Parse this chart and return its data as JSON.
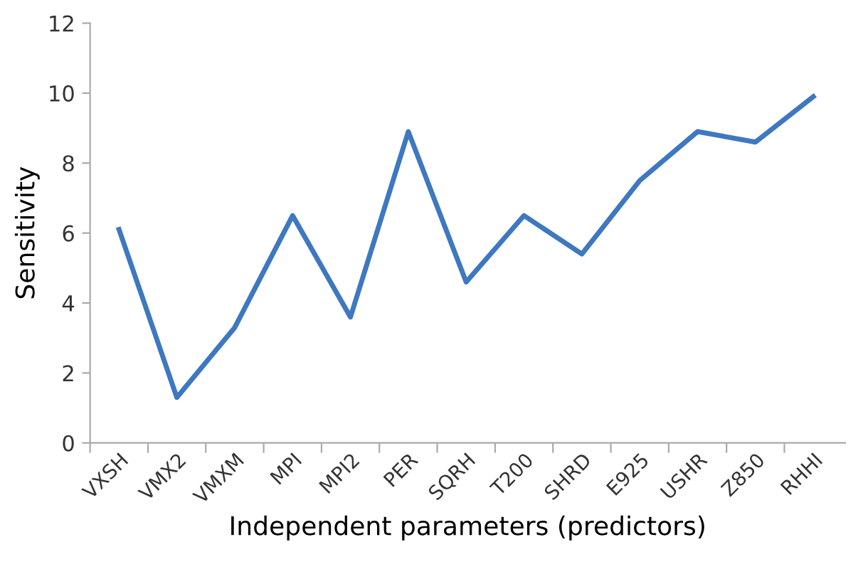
{
  "chart_data": {
    "type": "line",
    "xlabel": "Independent parameters (predictors)",
    "ylabel": "Sensitivity",
    "categories": [
      "VXSH",
      "VMX2",
      "VMXM",
      "MPI",
      "MPI2",
      "PER",
      "SQRH",
      "T200",
      "SHRD",
      "E925",
      "USHR",
      "Z850",
      "RHHI"
    ],
    "series": [
      {
        "color": "#3e78c0",
        "values": [
          6.1,
          1.3,
          3.3,
          6.5,
          3.6,
          8.9,
          4.6,
          6.5,
          5.4,
          7.5,
          8.9,
          8.6,
          9.9
        ]
      }
    ],
    "ylim": [
      0,
      12
    ],
    "yticks": [
      0,
      2,
      4,
      6,
      8,
      10,
      12
    ],
    "grid": false,
    "marker": "none",
    "line_style": "solid"
  }
}
